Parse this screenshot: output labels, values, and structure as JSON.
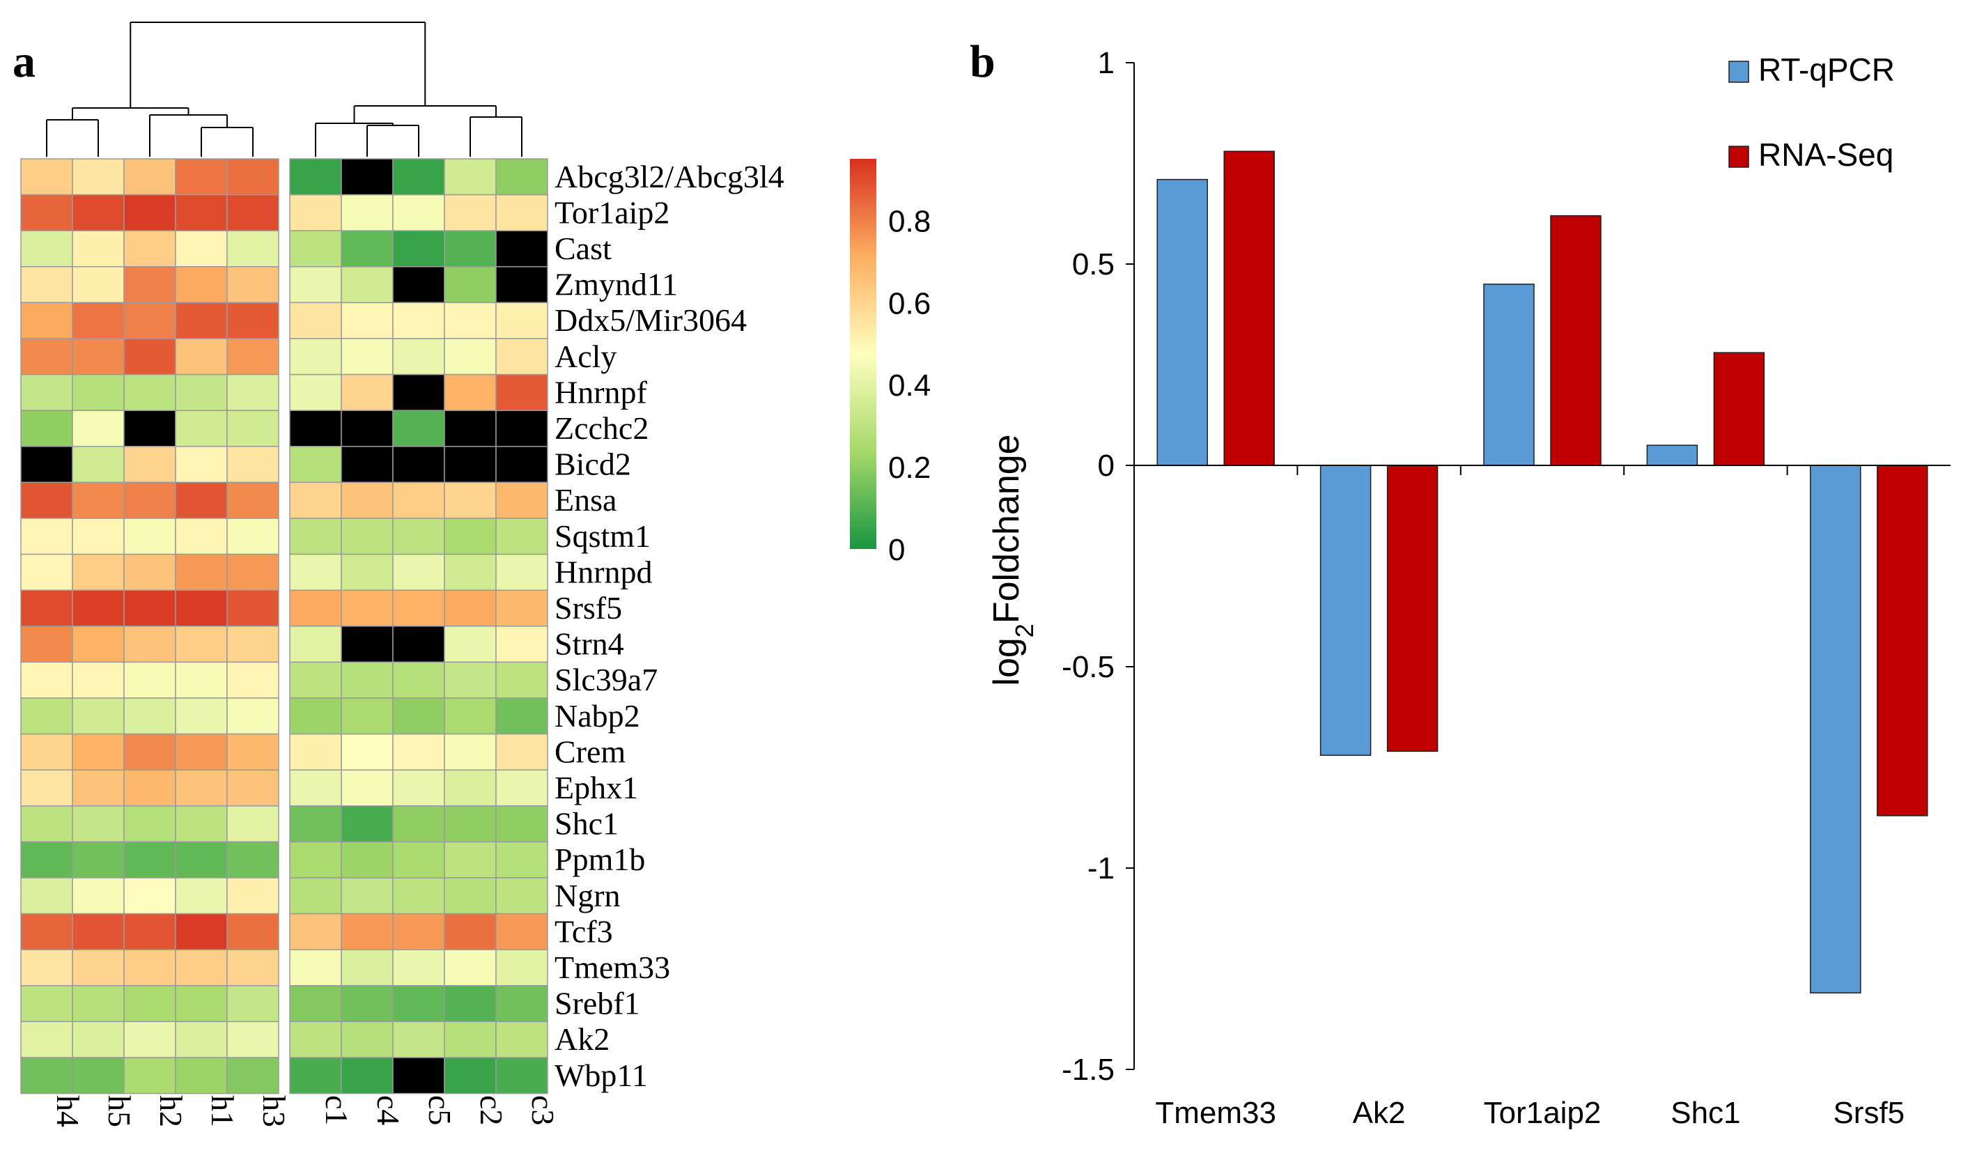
{
  "panels": {
    "a": "a",
    "b": "b"
  },
  "chart_data": [
    {
      "type": "heatmap",
      "panel": "a",
      "title": "",
      "rows": [
        "Abcg3l2/Abcg3l4",
        "Tor1aip2",
        "Cast",
        "Zmynd11",
        "Ddx5/Mir3064",
        "Acly",
        "Hnrnpf",
        "Zcchc2",
        "Bicd2",
        "Ensa",
        "Sqstm1",
        "Hnrnpd",
        "Srsf5",
        "Strn4",
        "Slc39a7",
        "Nabp2",
        "Crem",
        "Ephx1",
        "Shc1",
        "Ppm1b",
        "Ngrn",
        "Tcf3",
        "Tmem33",
        "Srebf1",
        "Ak2",
        "Wbp11"
      ],
      "columns": [
        "h4",
        "h5",
        "h2",
        "h1",
        "h3",
        "c1",
        "c4",
        "c5",
        "c2",
        "c3"
      ],
      "values": [
        [
          0.62,
          0.55,
          0.65,
          0.82,
          0.83,
          0.05,
          null,
          0.05,
          0.35,
          0.2
        ],
        [
          0.85,
          0.9,
          0.93,
          0.9,
          0.9,
          0.55,
          0.45,
          0.45,
          0.55,
          0.55
        ],
        [
          0.38,
          0.52,
          0.62,
          0.5,
          0.4,
          0.3,
          0.12,
          0.05,
          0.1,
          null
        ],
        [
          0.55,
          0.52,
          0.8,
          0.72,
          0.65,
          0.42,
          0.35,
          null,
          0.2,
          null
        ],
        [
          0.72,
          0.82,
          0.8,
          0.87,
          0.87,
          0.55,
          0.5,
          0.5,
          0.5,
          0.52
        ],
        [
          0.78,
          0.78,
          0.87,
          0.65,
          0.75,
          0.42,
          0.45,
          0.42,
          0.45,
          0.55
        ],
        [
          0.32,
          0.28,
          0.3,
          0.32,
          0.38,
          0.42,
          0.6,
          null,
          0.7,
          0.87
        ],
        [
          0.2,
          0.45,
          null,
          0.35,
          0.35,
          null,
          null,
          0.1,
          null,
          null
        ],
        [
          null,
          0.35,
          0.6,
          0.5,
          0.55,
          0.28,
          null,
          null,
          null,
          null
        ],
        [
          0.88,
          0.78,
          0.8,
          0.88,
          0.78,
          0.6,
          0.65,
          0.62,
          0.6,
          0.68
        ],
        [
          0.5,
          0.5,
          0.45,
          0.5,
          0.45,
          0.3,
          0.3,
          0.3,
          0.25,
          0.3
        ],
        [
          0.5,
          0.62,
          0.65,
          0.75,
          0.75,
          0.42,
          0.35,
          0.42,
          0.35,
          0.42
        ],
        [
          0.9,
          0.92,
          0.93,
          0.93,
          0.88,
          0.72,
          0.7,
          0.7,
          0.72,
          0.68
        ],
        [
          0.78,
          0.7,
          0.65,
          0.62,
          0.6,
          0.4,
          null,
          null,
          0.42,
          0.5
        ],
        [
          0.5,
          0.5,
          0.45,
          0.45,
          0.5,
          0.3,
          0.28,
          0.28,
          0.32,
          0.3
        ],
        [
          0.3,
          0.35,
          0.38,
          0.42,
          0.45,
          0.22,
          0.25,
          0.2,
          0.25,
          0.15
        ],
        [
          0.6,
          0.7,
          0.78,
          0.75,
          0.68,
          0.52,
          0.48,
          0.5,
          0.45,
          0.55
        ],
        [
          0.55,
          0.65,
          0.68,
          0.65,
          0.65,
          0.42,
          0.45,
          0.42,
          0.38,
          0.42
        ],
        [
          0.3,
          0.32,
          0.28,
          0.3,
          0.4,
          0.15,
          0.08,
          0.2,
          0.2,
          0.2
        ],
        [
          0.12,
          0.15,
          0.12,
          0.12,
          0.15,
          0.25,
          0.22,
          0.25,
          0.3,
          0.28
        ],
        [
          0.38,
          0.45,
          0.48,
          0.42,
          0.52,
          0.28,
          0.32,
          0.3,
          0.28,
          0.3
        ],
        [
          0.85,
          0.88,
          0.88,
          0.93,
          0.83,
          0.65,
          0.75,
          0.75,
          0.83,
          0.75
        ],
        [
          0.55,
          0.6,
          0.62,
          0.62,
          0.6,
          0.45,
          0.38,
          0.42,
          0.45,
          0.4
        ],
        [
          0.3,
          0.28,
          0.25,
          0.25,
          0.32,
          0.18,
          0.15,
          0.12,
          0.1,
          0.15
        ],
        [
          0.4,
          0.38,
          0.42,
          0.38,
          0.42,
          0.3,
          0.28,
          0.32,
          0.28,
          0.3
        ],
        [
          0.15,
          0.15,
          0.25,
          0.22,
          0.18,
          0.08,
          0.05,
          null,
          0.05,
          0.08
        ]
      ],
      "missing_color": "#000000",
      "colorbar": {
        "min": 0,
        "max": 0.95,
        "ticks": [
          "0.8",
          "0.6",
          "0.4",
          "0.2",
          "0"
        ],
        "tick_values": [
          0.8,
          0.6,
          0.4,
          0.2,
          0
        ]
      },
      "colors": {
        "low": "#1a9641",
        "mid": "#ffffbf",
        "high": "#d7301f",
        "mid_low": "#a6d96a",
        "mid_high": "#fdae61"
      }
    },
    {
      "type": "bar",
      "panel": "b",
      "title": "",
      "xlabel": "",
      "ylabel": {
        "prefix": "log",
        "sub": "2",
        "suffix": "Foldchange"
      },
      "ylim": [
        -1.5,
        1
      ],
      "yticks": [
        1,
        0.5,
        0,
        -0.5,
        -1,
        -1.5
      ],
      "ytick_labels": [
        "1",
        "0.5",
        "0",
        "-0.5",
        "-1",
        "-1.5"
      ],
      "categories": [
        "Tmem33",
        "Ak2",
        "Tor1aip2",
        "Shc1",
        "Srsf5"
      ],
      "series": [
        {
          "name": "RT-qPCR",
          "color": "#5b9bd5",
          "values": [
            0.71,
            -0.72,
            0.45,
            0.05,
            -1.31
          ]
        },
        {
          "name": "RNA-Seq",
          "color": "#c00000",
          "values": [
            0.78,
            -0.71,
            0.62,
            0.28,
            -0.87
          ]
        }
      ],
      "legend_position": "top-right"
    }
  ]
}
